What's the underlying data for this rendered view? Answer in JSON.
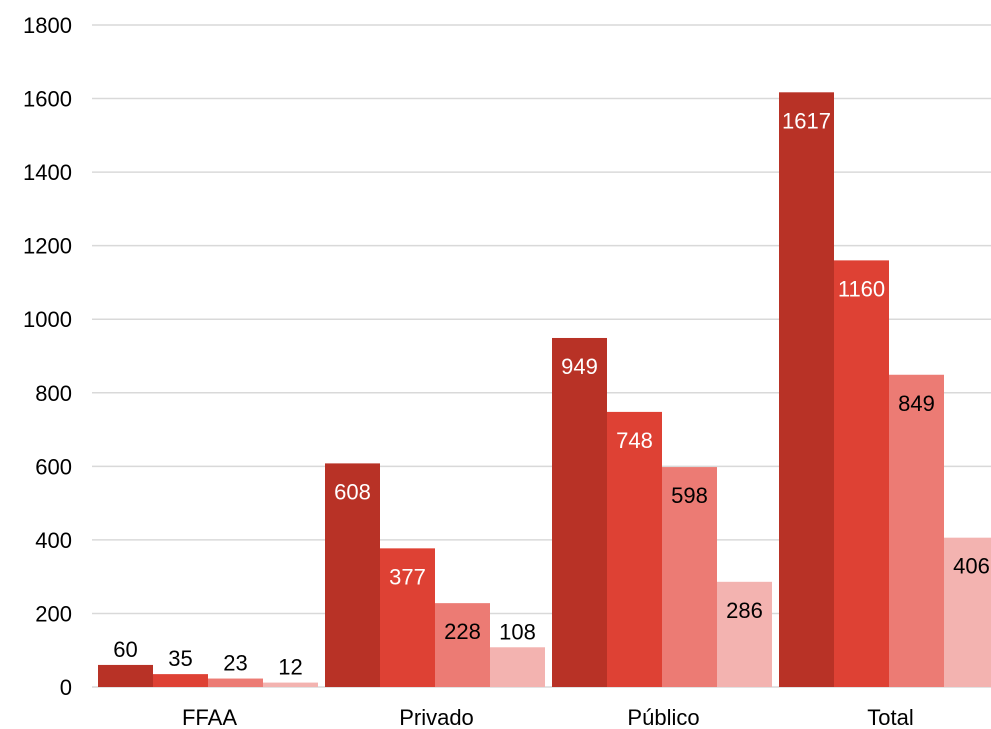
{
  "chart_data": {
    "type": "bar",
    "title": "",
    "xlabel": "",
    "ylabel": "",
    "categories": [
      "FFAA",
      "Privado",
      "Público",
      "Total"
    ],
    "series": [
      {
        "values": [
          60,
          608,
          949,
          1617
        ],
        "color": "#b83226",
        "label_color": "#ffffff"
      },
      {
        "values": [
          35,
          377,
          748,
          1160
        ],
        "color": "#de4134",
        "label_color": "#ffffff"
      },
      {
        "values": [
          23,
          228,
          598,
          849
        ],
        "color": "#ec7b74",
        "label_color": "#000000"
      },
      {
        "values": [
          12,
          108,
          286,
          406
        ],
        "color": "#f3b3b0",
        "label_color": "#000000"
      }
    ],
    "ylim": [
      0,
      1800
    ],
    "yticks": [
      "0",
      "200",
      "400",
      "600",
      "800",
      "1000",
      "1200",
      "1400",
      "1600",
      "1800"
    ],
    "grid": true,
    "legend": "none"
  }
}
